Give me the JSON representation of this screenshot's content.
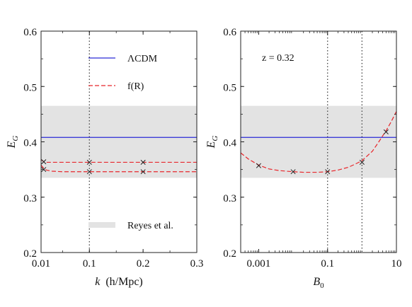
{
  "chart_data": [
    {
      "type": "line",
      "xlabel_var": "k",
      "xlabel_unit": "(h/Mpc)",
      "ylabel": "E",
      "ylabel_sub": "G",
      "xlim": [
        0.01,
        0.3
      ],
      "ylim": [
        0.2,
        0.6
      ],
      "x_scale": "linear",
      "x_ticks": [
        0.01,
        0.1,
        0.2,
        0.3
      ],
      "x_tick_labels": [
        "0.01",
        "0.1",
        "0.2",
        "0.3"
      ],
      "y_ticks": [
        0.2,
        0.3,
        0.4,
        0.5,
        0.6
      ],
      "y_tick_labels": [
        "0.2",
        "0.3",
        "0.4",
        "0.5",
        "0.6"
      ],
      "band": {
        "name": "Reyes et al.",
        "ymin": 0.335,
        "ymax": 0.465,
        "color": "#e3e3e3"
      },
      "vlines": [
        {
          "x": 0.1,
          "style": "dotted"
        }
      ],
      "series": [
        {
          "name": "ΛCDM",
          "style": "solid",
          "color": "#2b2bd6",
          "x": [
            0.01,
            0.3
          ],
          "y": [
            0.408,
            0.408
          ]
        },
        {
          "name": "f(R)",
          "style": "dashed",
          "color": "#e8262b",
          "x": [
            0.01,
            0.015,
            0.02,
            0.03,
            0.05,
            0.1,
            0.15,
            0.2,
            0.25,
            0.3
          ],
          "y": [
            0.368,
            0.364,
            0.363,
            0.363,
            0.363,
            0.363,
            0.363,
            0.363,
            0.363,
            0.363
          ]
        },
        {
          "name": "",
          "style": "dashed",
          "color": "#e8262b",
          "x": [
            0.01,
            0.015,
            0.02,
            0.03,
            0.05,
            0.1,
            0.15,
            0.2,
            0.25,
            0.3
          ],
          "y": [
            0.358,
            0.352,
            0.349,
            0.347,
            0.346,
            0.346,
            0.346,
            0.346,
            0.346,
            0.346
          ]
        }
      ],
      "markers": {
        "symbol": "x",
        "x": [
          0.015,
          0.1,
          0.2,
          0.015,
          0.1,
          0.2
        ],
        "y": [
          0.364,
          0.363,
          0.363,
          0.35,
          0.346,
          0.346
        ]
      },
      "legend": {
        "placement": "upper",
        "entries": [
          "ΛCDM",
          "f(R)"
        ],
        "band_entry": "Reyes et al."
      }
    },
    {
      "type": "line",
      "xlabel_var": "B",
      "xlabel_sub": "0",
      "ylabel": "E",
      "ylabel_sub": "G",
      "xlim": [
        0.0003,
        10
      ],
      "ylim": [
        0.2,
        0.6
      ],
      "x_scale": "log",
      "x_ticks": [
        0.001,
        0.1,
        10
      ],
      "x_tick_labels": [
        "0.001",
        "0.1",
        "10"
      ],
      "y_ticks": [
        0.2,
        0.3,
        0.4,
        0.5,
        0.6
      ],
      "y_tick_labels": [
        "0.2",
        "0.3",
        "0.4",
        "0.5",
        "0.6"
      ],
      "annotation": "z = 0.32",
      "band": {
        "name": "Reyes et al.",
        "ymin": 0.335,
        "ymax": 0.465,
        "color": "#e3e3e3"
      },
      "vlines": [
        {
          "x": 0.1,
          "style": "dotted"
        },
        {
          "x": 1,
          "style": "dotted"
        }
      ],
      "series": [
        {
          "name": "ΛCDM",
          "style": "solid",
          "color": "#2b2bd6",
          "x": [
            0.0003,
            10
          ],
          "y": [
            0.408,
            0.408
          ]
        },
        {
          "name": "f(R)",
          "style": "dashed",
          "color": "#e8262b",
          "x": [
            0.0003,
            0.0005,
            0.001,
            0.002,
            0.004,
            0.01,
            0.02,
            0.05,
            0.1,
            0.2,
            0.4,
            0.7,
            1,
            2,
            3,
            5,
            7,
            10
          ],
          "y": [
            0.38,
            0.369,
            0.358,
            0.351,
            0.348,
            0.346,
            0.345,
            0.345,
            0.346,
            0.349,
            0.354,
            0.361,
            0.366,
            0.383,
            0.399,
            0.42,
            0.436,
            0.455
          ]
        }
      ],
      "markers": {
        "symbol": "x",
        "x": [
          0.001,
          0.01,
          0.1,
          1,
          5
        ],
        "y": [
          0.357,
          0.346,
          0.346,
          0.363,
          0.418
        ]
      }
    }
  ]
}
